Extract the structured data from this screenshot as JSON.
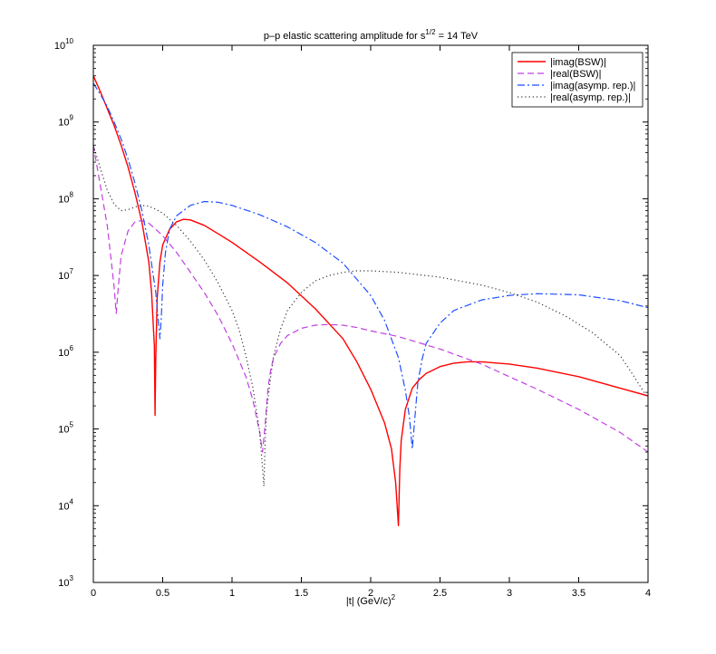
{
  "chart_data": {
    "type": "line",
    "title": {
      "prefix": "p–p elastic scattering amplitude for s",
      "superscript": "1/2",
      "suffix": " = 14 TeV"
    },
    "xlabel": {
      "main": "|t|  (GeV/c)",
      "superscript": "2"
    },
    "ylabel": "",
    "x_scale": "linear",
    "y_scale": "log",
    "xlim": [
      0,
      4
    ],
    "ylim": [
      1000,
      10000000000
    ],
    "x_ticks": [
      0,
      0.5,
      1,
      1.5,
      2,
      2.5,
      3,
      3.5,
      4
    ],
    "x_tick_labels": [
      "0",
      "0.5",
      "1",
      "1.5",
      "2",
      "2.5",
      "3",
      "3.5",
      "4"
    ],
    "y_ticks": [
      1000,
      10000,
      100000,
      1000000,
      10000000,
      100000000,
      1000000000,
      10000000000
    ],
    "y_tick_labels": [
      {
        "base": "10",
        "exp": "3"
      },
      {
        "base": "10",
        "exp": "4"
      },
      {
        "base": "10",
        "exp": "5"
      },
      {
        "base": "10",
        "exp": "6"
      },
      {
        "base": "10",
        "exp": "7"
      },
      {
        "base": "10",
        "exp": "8"
      },
      {
        "base": "10",
        "exp": "9"
      },
      {
        "base": "10",
        "exp": "10"
      }
    ],
    "grid": false,
    "legend_position": "top-right",
    "series": [
      {
        "name": "|imag(BSW)|",
        "color": "#ff0000",
        "dash": "solid",
        "x": [
          0,
          0.05,
          0.1,
          0.15,
          0.2,
          0.25,
          0.3,
          0.35,
          0.4,
          0.42,
          0.44,
          0.445,
          0.45,
          0.46,
          0.48,
          0.5,
          0.55,
          0.6,
          0.65,
          0.7,
          0.8,
          0.9,
          1,
          1.2,
          1.4,
          1.6,
          1.8,
          1.9,
          2,
          2.1,
          2.15,
          2.18,
          2.2,
          2.21,
          2.22,
          2.25,
          2.3,
          2.35,
          2.4,
          2.5,
          2.6,
          2.7,
          2.8,
          3,
          3.2,
          3.5,
          3.8,
          4
        ],
        "y": [
          4000000000,
          2500000000,
          1500000000,
          900000000,
          500000000,
          260000000,
          120000000,
          50000000,
          15000000,
          6000000,
          1200000,
          150000,
          800000,
          5000000,
          15000000,
          25000000,
          40000000,
          50000000,
          54000000,
          53000000,
          45000000,
          35000000,
          27000000,
          15000000,
          8000000,
          3700000,
          1500000,
          750000,
          330000,
          120000,
          55000,
          20000,
          5500,
          30000,
          70000,
          180000,
          340000,
          440000,
          530000,
          650000,
          720000,
          750000,
          750000,
          700000,
          620000,
          480000,
          340000,
          270000
        ]
      },
      {
        "name": "|real(BSW)|",
        "color": "#c040e0",
        "dash": "dashed",
        "x": [
          0,
          0.05,
          0.1,
          0.13,
          0.15,
          0.165,
          0.18,
          0.2,
          0.25,
          0.3,
          0.35,
          0.4,
          0.45,
          0.5,
          0.6,
          0.7,
          0.8,
          0.9,
          1,
          1.1,
          1.15,
          1.2,
          1.22,
          1.24,
          1.26,
          1.28,
          1.3,
          1.35,
          1.4,
          1.5,
          1.6,
          1.7,
          1.8,
          1.9,
          2,
          2.2,
          2.5,
          2.8,
          3,
          3.2,
          3.5,
          3.8,
          4
        ],
        "y": [
          500000000,
          150000000,
          45000000,
          15000000,
          7000000,
          3200000,
          7000000,
          18000000,
          38000000,
          50000000,
          52000000,
          48000000,
          40000000,
          33000000,
          20000000,
          11000000,
          6000000,
          3000000,
          1300000,
          480000,
          240000,
          90000,
          50000,
          120000,
          350000,
          600000,
          850000,
          1300000,
          1650000,
          2050000,
          2250000,
          2300000,
          2250000,
          2100000,
          1900000,
          1600000,
          1100000,
          700000,
          480000,
          330000,
          180000,
          90000,
          50000
        ]
      },
      {
        "name": "|imag(asymp. rep.)|",
        "color": "#1f4fff",
        "dash": "dashdot",
        "x": [
          0,
          0.05,
          0.1,
          0.15,
          0.2,
          0.25,
          0.3,
          0.35,
          0.4,
          0.45,
          0.48,
          0.49,
          0.5,
          0.52,
          0.55,
          0.6,
          0.7,
          0.8,
          0.9,
          1,
          1.2,
          1.4,
          1.6,
          1.8,
          2,
          2.1,
          2.2,
          2.25,
          2.28,
          2.3,
          2.32,
          2.34,
          2.37,
          2.4,
          2.5,
          2.6,
          2.8,
          3,
          3.2,
          3.5,
          3.8,
          4
        ],
        "y": [
          3200000000,
          2300000000,
          1600000000,
          1000000000,
          600000000,
          330000000,
          160000000,
          70000000,
          25000000,
          6000000,
          1500000,
          2800000,
          7500000,
          20000000,
          40000000,
          60000000,
          82000000,
          92000000,
          90000000,
          82000000,
          62000000,
          43000000,
          27000000,
          14500000,
          5500000,
          2600000,
          850000,
          320000,
          140000,
          55000,
          150000,
          400000,
          800000,
          1300000,
          2400000,
          3500000,
          4800000,
          5500000,
          5800000,
          5600000,
          4700000,
          3800000
        ]
      },
      {
        "name": "|real(asymp. rep.)|",
        "color": "#333333",
        "dash": "dotted",
        "x": [
          0,
          0.05,
          0.1,
          0.15,
          0.2,
          0.25,
          0.3,
          0.35,
          0.4,
          0.45,
          0.5,
          0.6,
          0.7,
          0.8,
          0.9,
          1,
          1.05,
          1.1,
          1.15,
          1.2,
          1.23,
          1.24,
          1.25,
          1.28,
          1.3,
          1.35,
          1.4,
          1.5,
          1.6,
          1.7,
          1.8,
          1.9,
          2,
          2.2,
          2.5,
          2.8,
          3,
          3.2,
          3.4,
          3.6,
          3.8,
          3.9,
          4
        ],
        "y": [
          500000000,
          250000000,
          130000000,
          85000000,
          70000000,
          72000000,
          78000000,
          82000000,
          80000000,
          73000000,
          65000000,
          45000000,
          28000000,
          16000000,
          8000000,
          3500000,
          2000000,
          900000,
          350000,
          90000,
          18000,
          80000,
          180000,
          500000,
          900000,
          2000000,
          3500000,
          6000000,
          8500000,
          10000000,
          11000000,
          11500000,
          11500000,
          11000000,
          9500000,
          7500000,
          6000000,
          4500000,
          3000000,
          1800000,
          900000,
          480000,
          250000
        ]
      }
    ]
  }
}
